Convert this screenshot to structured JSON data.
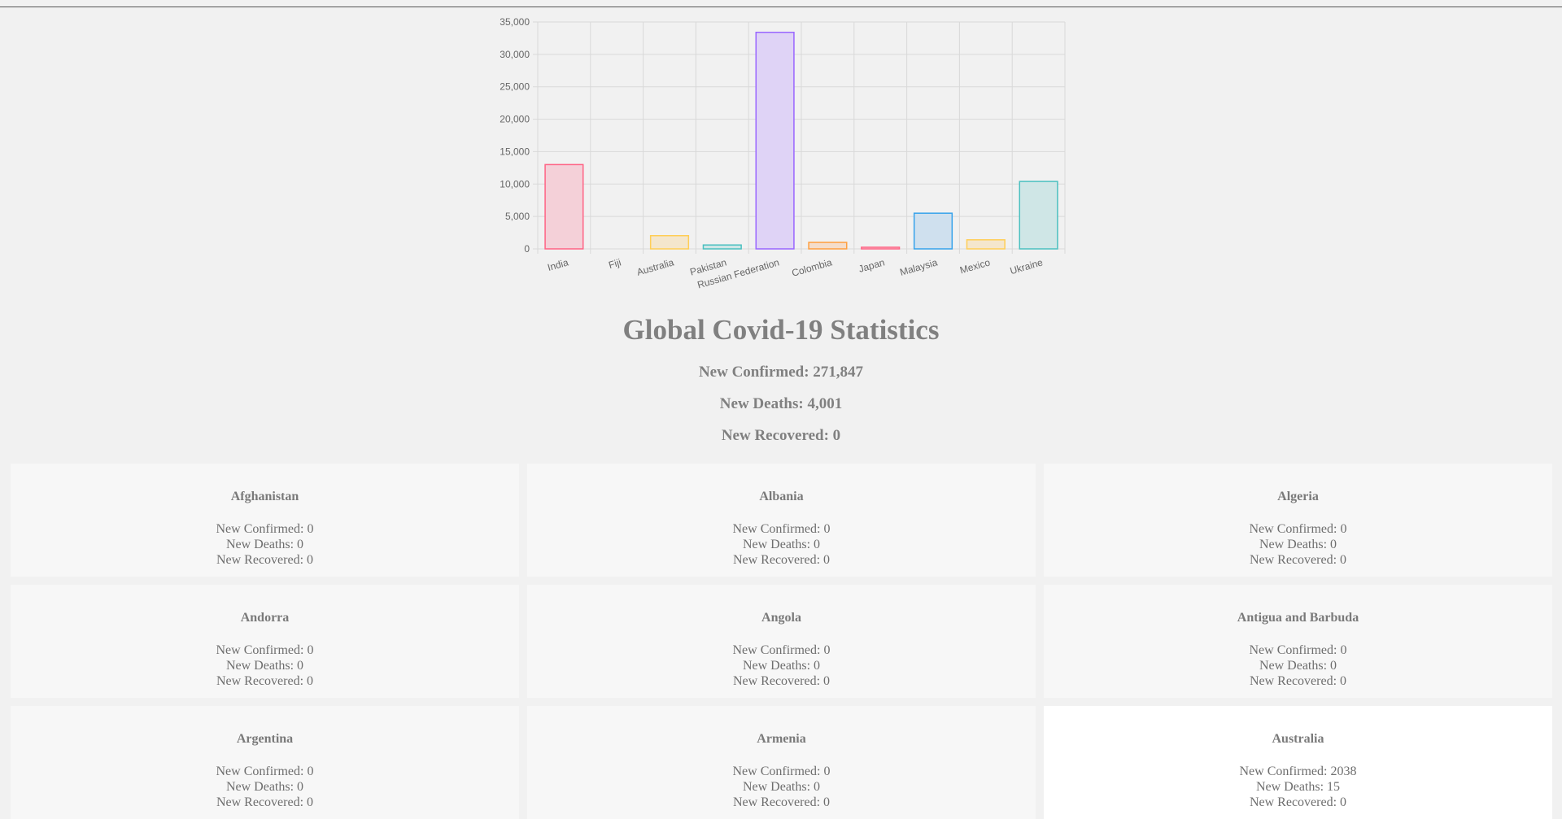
{
  "chart_data": {
    "type": "bar",
    "categories": [
      "India",
      "Fiji",
      "Australia",
      "Pakistan",
      "Russian Federation",
      "Colombia",
      "Japan",
      "Malaysia",
      "Mexico",
      "Ukraine"
    ],
    "values": [
      13000,
      0,
      2038,
      600,
      33400,
      1000,
      250,
      5500,
      1400,
      10400
    ],
    "ylim": [
      0,
      35000
    ],
    "yticks": [
      "0",
      "5,000",
      "10,000",
      "15,000",
      "20,000",
      "25,000",
      "30,000",
      "35,000"
    ],
    "grid": true,
    "legend": "none",
    "colors": [
      {
        "stroke": "#ff6384",
        "fill": "#f4d0d8"
      },
      {
        "stroke": "#36a2eb",
        "fill": "#cfe0ee"
      },
      {
        "stroke": "#ffce56",
        "fill": "#f4e6cc"
      },
      {
        "stroke": "#4bc0c0",
        "fill": "#cfe6e6"
      },
      {
        "stroke": "#9966ff",
        "fill": "#dfd3f6"
      },
      {
        "stroke": "#ff9f40",
        "fill": "#f4ddcb"
      },
      {
        "stroke": "#ff6384",
        "fill": "#f4d0d8"
      },
      {
        "stroke": "#36a2eb",
        "fill": "#cfe0ee"
      },
      {
        "stroke": "#ffce56",
        "fill": "#f4e6cc"
      },
      {
        "stroke": "#4bc0c0",
        "fill": "#cfe6e6"
      }
    ]
  },
  "header": {
    "title": "Global Covid-19 Statistics",
    "new_confirmed": "New Confirmed: 271,847",
    "new_deaths": "New Deaths: 4,001",
    "new_recovered": "New Recovered: 0"
  },
  "countries": [
    {
      "name": "Afghanistan",
      "confirmed": "New Confirmed: 0",
      "deaths": "New Deaths: 0",
      "recovered": "New Recovered: 0"
    },
    {
      "name": "Albania",
      "confirmed": "New Confirmed: 0",
      "deaths": "New Deaths: 0",
      "recovered": "New Recovered: 0"
    },
    {
      "name": "Algeria",
      "confirmed": "New Confirmed: 0",
      "deaths": "New Deaths: 0",
      "recovered": "New Recovered: 0"
    },
    {
      "name": "Andorra",
      "confirmed": "New Confirmed: 0",
      "deaths": "New Deaths: 0",
      "recovered": "New Recovered: 0"
    },
    {
      "name": "Angola",
      "confirmed": "New Confirmed: 0",
      "deaths": "New Deaths: 0",
      "recovered": "New Recovered: 0"
    },
    {
      "name": "Antigua and Barbuda",
      "confirmed": "New Confirmed: 0",
      "deaths": "New Deaths: 0",
      "recovered": "New Recovered: 0"
    },
    {
      "name": "Argentina",
      "confirmed": "New Confirmed: 0",
      "deaths": "New Deaths: 0",
      "recovered": "New Recovered: 0"
    },
    {
      "name": "Armenia",
      "confirmed": "New Confirmed: 0",
      "deaths": "New Deaths: 0",
      "recovered": "New Recovered: 0"
    },
    {
      "name": "Australia",
      "confirmed": "New Confirmed: 2038",
      "deaths": "New Deaths: 15",
      "recovered": "New Recovered: 0"
    }
  ]
}
